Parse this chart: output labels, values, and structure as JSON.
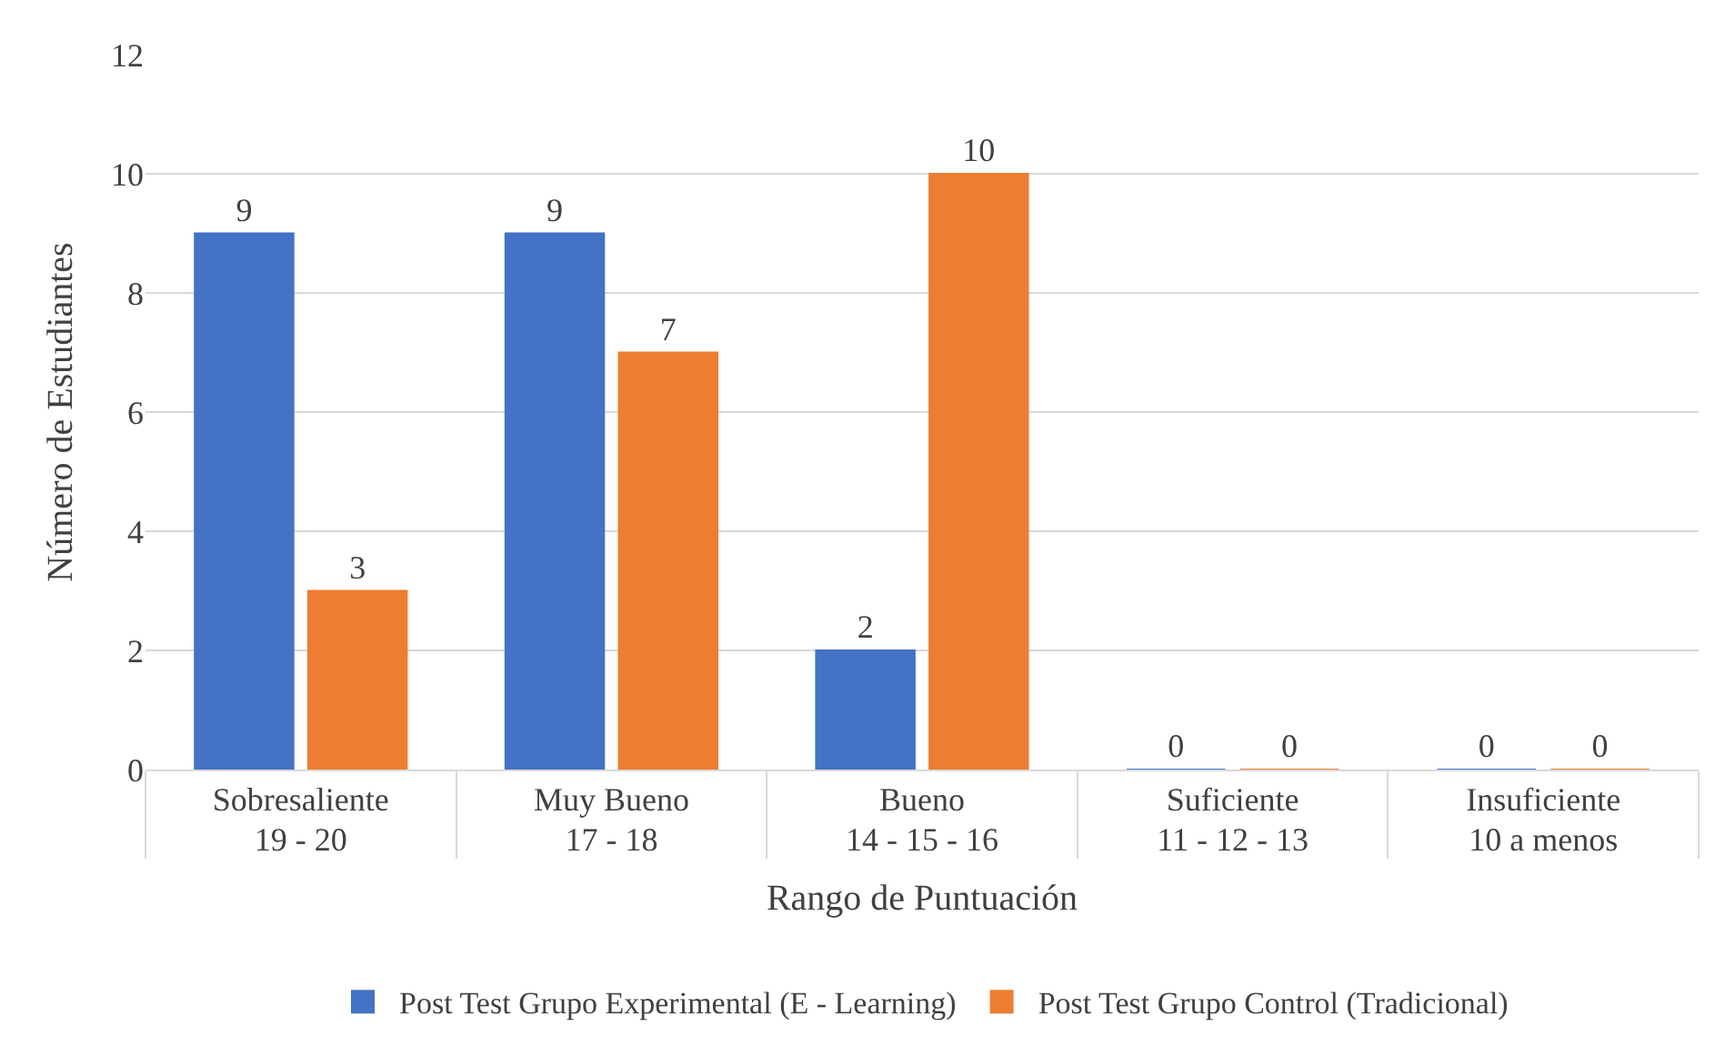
{
  "chart_data": {
    "type": "bar",
    "xlabel": "Rango de Puntuación",
    "ylabel": "Número de Estudiantes",
    "categories": [
      "Sobresaliente\n19 - 20",
      "Muy Bueno\n17 - 18",
      "Bueno\n14 - 15 - 16",
      "Suficiente\n11 - 12 - 13",
      "Insuficiente\n10 a menos"
    ],
    "series": [
      {
        "name": "Post Test Grupo Experimental (E - Learning)",
        "color": "#4472c4",
        "values": [
          9,
          9,
          2,
          0,
          0
        ]
      },
      {
        "name": "Post Test Grupo Control (Tradicional)",
        "color": "#ed7d31",
        "values": [
          3,
          7,
          10,
          0,
          0
        ]
      }
    ],
    "ylim": [
      0,
      12
    ],
    "yticks": [
      0,
      2,
      4,
      6,
      8,
      10,
      12
    ],
    "grid": "y",
    "legend": "bottom",
    "data_labels": true
  }
}
